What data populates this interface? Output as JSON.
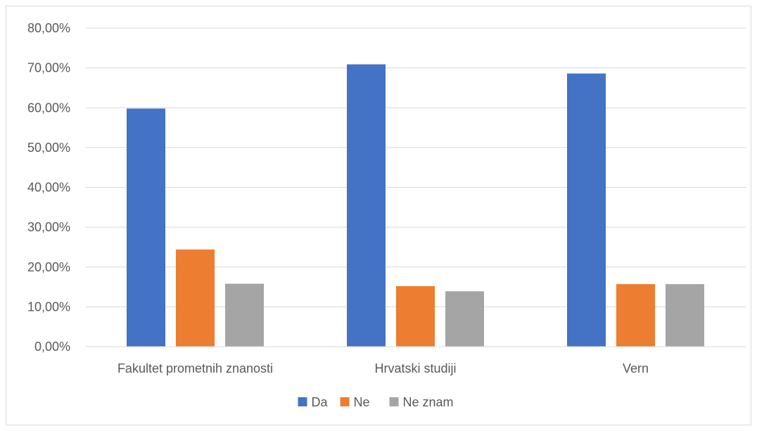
{
  "chart_data": {
    "type": "bar",
    "categories": [
      "Fakultet prometnih znanosti",
      "Hrvatski studiji",
      "Vern"
    ],
    "series": [
      {
        "name": "Da",
        "values": [
          59.8,
          70.9,
          68.6
        ],
        "color": "#4472C4"
      },
      {
        "name": "Ne",
        "values": [
          24.4,
          15.2,
          15.7
        ],
        "color": "#ED7D31"
      },
      {
        "name": "Ne znam",
        "values": [
          15.8,
          13.9,
          15.7
        ],
        "color": "#A5A5A5"
      }
    ],
    "y_ticks": [
      "0,00%",
      "10,00%",
      "20,00%",
      "30,00%",
      "40,00%",
      "50,00%",
      "60,00%",
      "70,00%",
      "80,00%"
    ],
    "ylim": [
      0,
      80
    ],
    "grid": true,
    "legend_position": "bottom",
    "title": "",
    "xlabel": "",
    "ylabel": ""
  }
}
